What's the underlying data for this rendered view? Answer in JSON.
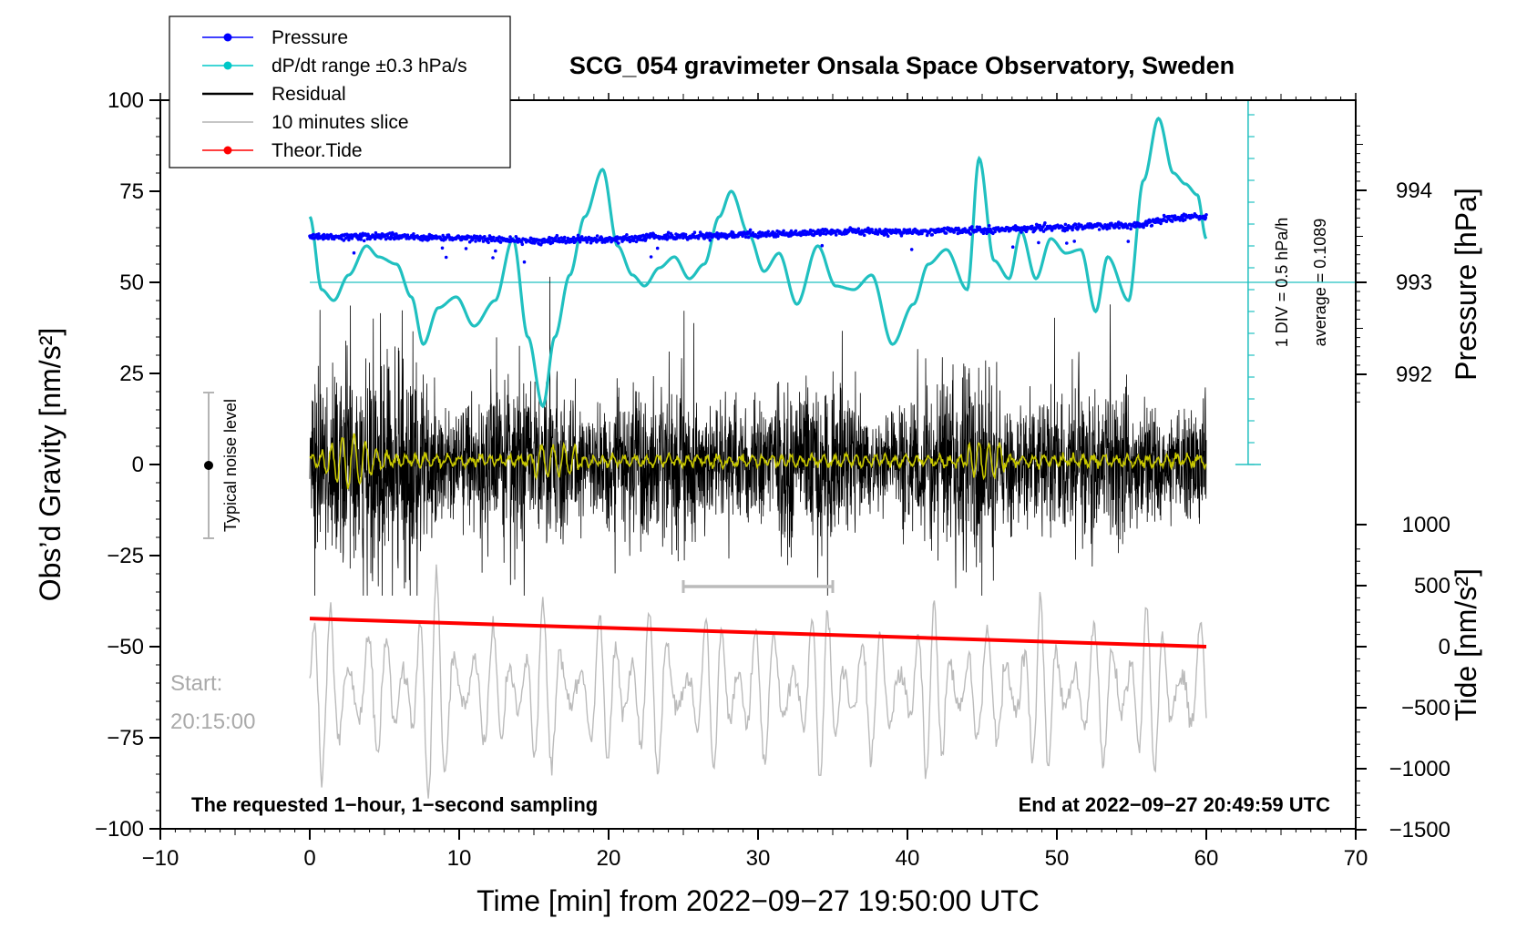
{
  "chart_data": {
    "type": "line",
    "title": "SCG_054 gravimeter Onsala Space Observatory, Sweden",
    "xlabel": "Time [min] from 2022−09−27 19:50:00 UTC",
    "ylabel_left": "Obs’d Gravity [nm/s²]",
    "ylabel_right_top": "Pressure [hPa]",
    "ylabel_right_bottom": "Tide [nm/s²]",
    "xlim": [
      -10,
      70
    ],
    "ylim_left": [
      -100,
      100
    ],
    "x_ticks": [
      "−10",
      "0",
      "10",
      "20",
      "30",
      "40",
      "50",
      "60",
      "70"
    ],
    "y_ticks_left": [
      "100",
      "75",
      "50",
      "25",
      "0",
      "−25",
      "−50",
      "−75",
      "−100"
    ],
    "pressure_ticks": [
      "994",
      "993",
      "992"
    ],
    "tide_ticks": [
      "1000",
      "500",
      "0",
      "−500",
      "−1000",
      "−1500"
    ],
    "legend": [
      {
        "label": "Pressure",
        "color": "#0000ff",
        "marker": true
      },
      {
        "label": "dP/dt range ±0.3 hPa/s",
        "color": "#00c8c8",
        "marker": true
      },
      {
        "label": "Residual",
        "color": "#000000",
        "marker": false
      },
      {
        "label": "10 minutes slice",
        "color": "#b4b4b4",
        "marker": false
      },
      {
        "label": "Theor.Tide",
        "color": "#ff0000",
        "marker": true
      }
    ],
    "colors": {
      "pressure": "#0000ff",
      "dpdt": "#20c0c0",
      "residual": "#000000",
      "filtered": "#c8c800",
      "slice": "#bbbbbb",
      "tide": "#ff0000"
    },
    "series": [
      {
        "name": "Pressure",
        "unit": "hPa",
        "x": [
          0,
          5,
          10,
          15,
          20,
          25,
          30,
          35,
          40,
          45,
          50,
          55,
          58,
          60
        ],
        "values": [
          993.5,
          993.5,
          993.48,
          993.45,
          993.47,
          993.5,
          993.52,
          993.55,
          993.55,
          993.57,
          993.6,
          993.62,
          993.7,
          993.72
        ]
      },
      {
        "name": "dP/dt",
        "unit": "gravity-axis units",
        "x": [
          0,
          0.8,
          1.6,
          2.6,
          3.8,
          4.6,
          5.8,
          6.8,
          7.6,
          8.6,
          9.8,
          11.0,
          12.4,
          13.6,
          14.6,
          15.6,
          16.4,
          17.4,
          18.4,
          19.6,
          20.6,
          21.6,
          22.4,
          23.4,
          24.4,
          25.4,
          26.4,
          27.4,
          28.2,
          29.4,
          30.4,
          31.4,
          32.6,
          34.0,
          35.2,
          36.4,
          37.6,
          39.0,
          40.4,
          41.4,
          42.6,
          44.0,
          44.8,
          45.8,
          46.8,
          47.6,
          48.6,
          49.6,
          50.6,
          51.6,
          52.6,
          53.4,
          54.8,
          55.8,
          56.8,
          57.8,
          58.6,
          59.4,
          60
        ],
        "values": [
          68,
          48,
          45,
          52,
          60,
          57,
          55,
          46,
          33,
          43,
          46,
          38,
          45,
          62,
          35,
          16,
          35,
          52,
          68,
          81,
          60,
          52,
          49,
          54,
          57,
          51,
          55,
          68,
          75,
          63,
          53,
          58,
          44,
          60,
          49,
          48,
          52,
          33,
          44,
          55,
          59,
          48,
          84,
          56,
          51,
          64,
          51,
          62,
          58,
          59,
          42,
          57,
          45,
          78,
          95,
          80,
          77,
          74,
          62
        ]
      },
      {
        "name": "Theor.Tide",
        "unit": "nm/s²",
        "x": [
          0,
          60
        ],
        "values": [
          230,
          0
        ]
      },
      {
        "name": "Residual",
        "unit": "nm/s²",
        "approx_range": [
          -36,
          52
        ]
      }
    ],
    "annotations": {
      "div_label": "1 DIV = 0.5 hPa/h",
      "average_label": "average = 0.1089",
      "noise_label": "Typical noise level",
      "start_label": "Start:",
      "start_time": "20:15:00",
      "footer_left": "The requested 1−hour, 1−second sampling",
      "footer_right": "End at 2022−09−27 20:49:59 UTC"
    }
  }
}
